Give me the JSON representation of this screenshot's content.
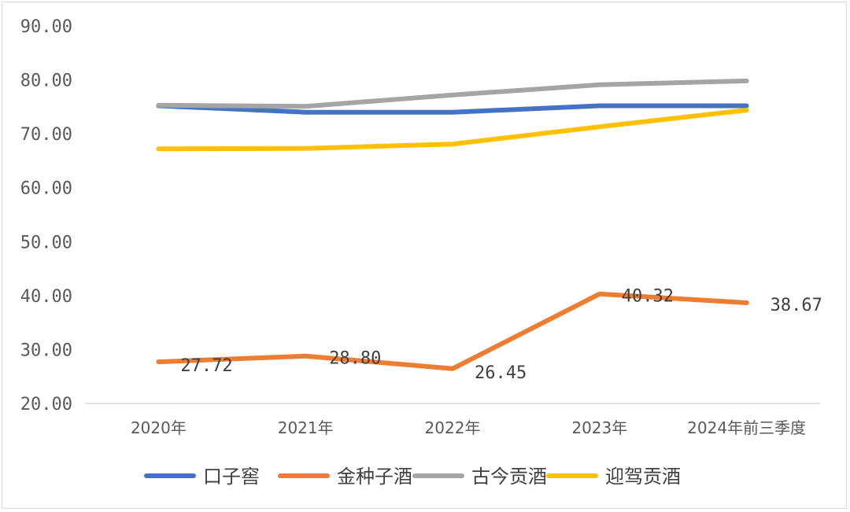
{
  "chart_data": {
    "type": "line",
    "categories": [
      "2020年",
      "2021年",
      "2022年",
      "2023年",
      "2024年前三季度"
    ],
    "y_ticks": [
      "20.00",
      "30.00",
      "40.00",
      "50.00",
      "60.00",
      "70.00",
      "80.00",
      "90.00"
    ],
    "ylim": [
      20,
      90
    ],
    "grid": false,
    "legend_position": "bottom",
    "series": [
      {
        "name": "口子窖",
        "color": "#4472C4",
        "values": [
          75.2,
          74.0,
          74.0,
          75.2,
          75.2
        ],
        "labels": [
          "",
          "",
          "",
          "",
          ""
        ]
      },
      {
        "name": "金种子酒",
        "color": "#ED7D31",
        "values": [
          27.72,
          28.8,
          26.45,
          40.32,
          38.67
        ],
        "labels": [
          "27.72",
          "28.80",
          "26.45",
          "40.32",
          "38.67"
        ]
      },
      {
        "name": "古今贡酒",
        "color": "#A5A5A5",
        "values": [
          75.3,
          75.1,
          77.2,
          79.1,
          79.8
        ],
        "labels": [
          "",
          "",
          "",
          "",
          ""
        ]
      },
      {
        "name": "迎驾贡酒",
        "color": "#FFC000",
        "values": [
          67.2,
          67.3,
          68.1,
          71.3,
          74.4
        ],
        "labels": [
          "",
          "",
          "",
          "",
          ""
        ]
      }
    ]
  }
}
